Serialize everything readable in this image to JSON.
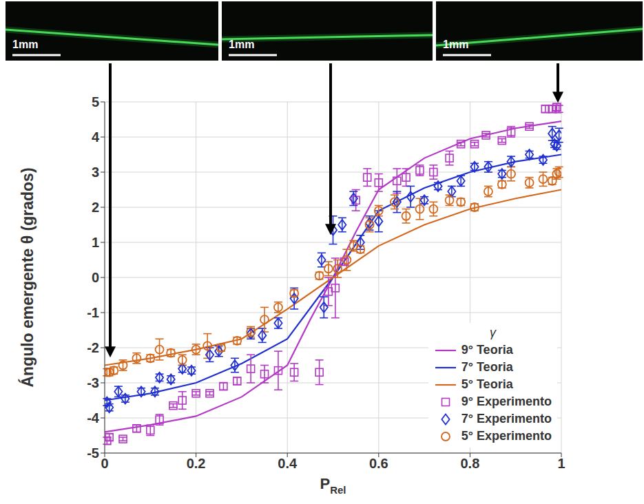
{
  "chart_data": {
    "type": "scatter",
    "ylabel": "Ángulo emergente θ (grados)",
    "xlabel": {
      "text": "P",
      "subscript": "Rel"
    },
    "legend_title": "γ",
    "legend": "lower right",
    "grid": true,
    "xlim": [
      0,
      1
    ],
    "xticks": [
      0,
      0.2,
      0.4,
      0.6,
      0.8,
      1
    ],
    "ylim": [
      -5,
      5
    ],
    "yticks": [
      -5,
      -4,
      -3,
      -2,
      -1,
      0,
      1,
      2,
      3,
      4,
      5
    ],
    "annotations": [
      "1mm",
      "1mm",
      "1mm"
    ],
    "series": [
      {
        "name": "9° Teoria",
        "type": "line",
        "line_style": "solid",
        "color": "#b23ac4",
        "x": [
          0,
          0.1,
          0.2,
          0.3,
          0.4,
          0.45,
          0.5,
          0.55,
          0.6,
          0.7,
          0.8,
          0.9,
          1.0
        ],
        "values": [
          -4.4,
          -4.2,
          -3.95,
          -3.4,
          -2.5,
          -1.2,
          0,
          1.3,
          2.5,
          3.4,
          3.95,
          4.25,
          4.45
        ]
      },
      {
        "name": "7° Teoria",
        "type": "line",
        "line_style": "solid",
        "color": "#1f2fd0",
        "x": [
          0,
          0.1,
          0.2,
          0.3,
          0.4,
          0.5,
          0.6,
          0.7,
          0.8,
          0.9,
          1.0
        ],
        "values": [
          -3.5,
          -3.3,
          -3.0,
          -2.45,
          -1.75,
          0,
          1.9,
          2.55,
          3.0,
          3.3,
          3.5
        ]
      },
      {
        "name": "5° Teoria",
        "type": "line",
        "line_style": "solid",
        "color": "#d2691e",
        "x": [
          0,
          0.1,
          0.2,
          0.3,
          0.4,
          0.5,
          0.6,
          0.7,
          0.8,
          0.9,
          1.0
        ],
        "values": [
          -2.5,
          -2.3,
          -2.05,
          -1.75,
          -0.9,
          0,
          0.9,
          1.5,
          1.95,
          2.25,
          2.5
        ]
      },
      {
        "name": "9° Experimento",
        "type": "scatter",
        "marker": "square",
        "color": "#b23ac4",
        "x": [
          0.005,
          0.01,
          0.04,
          0.07,
          0.1,
          0.12,
          0.15,
          0.17,
          0.2,
          0.23,
          0.26,
          0.29,
          0.32,
          0.35,
          0.38,
          0.415,
          0.47,
          0.49,
          0.505,
          0.525,
          0.55,
          0.575,
          0.6,
          0.64,
          0.66,
          0.69,
          0.72,
          0.755,
          0.78,
          0.81,
          0.835,
          0.87,
          0.89,
          0.93,
          0.965,
          0.98,
          0.99,
          0.995
        ],
        "values": [
          -4.65,
          -4.55,
          -4.6,
          -4.3,
          -4.35,
          -4.05,
          -3.65,
          -3.5,
          -3.3,
          -3.3,
          -3.1,
          -2.95,
          -2.6,
          -2.75,
          -2.65,
          -2.7,
          -2.7,
          -0.4,
          -0.3,
          0.45,
          2.2,
          2.85,
          2.7,
          2.75,
          2.85,
          3.05,
          3.0,
          3.4,
          3.8,
          3.8,
          4.05,
          3.9,
          4.15,
          4.3,
          4.8,
          4.8,
          4.85,
          4.8
        ],
        "errors": [
          0.1,
          0.1,
          0.05,
          0.1,
          0.15,
          0.15,
          0.05,
          0.25,
          0.05,
          0.05,
          0.1,
          0.1,
          0.4,
          0.25,
          0.55,
          0.25,
          0.35,
          0.4,
          0.85,
          0.1,
          0.3,
          0.25,
          0.25,
          0.35,
          0.25,
          0.15,
          0.2,
          0.2,
          0.05,
          0.05,
          0.05,
          0.05,
          0.15,
          0.05,
          0.1,
          0.1,
          0.1,
          0.1
        ]
      },
      {
        "name": "7° Experimento",
        "type": "scatter",
        "marker": "diamond",
        "color": "#1f2fd0",
        "x": [
          0.005,
          0.01,
          0.03,
          0.045,
          0.08,
          0.11,
          0.12,
          0.145,
          0.17,
          0.19,
          0.23,
          0.25,
          0.285,
          0.32,
          0.345,
          0.38,
          0.415,
          0.475,
          0.48,
          0.5,
          0.52,
          0.545,
          0.56,
          0.58,
          0.6,
          0.64,
          0.67,
          0.7,
          0.73,
          0.76,
          0.78,
          0.81,
          0.84,
          0.87,
          0.89,
          0.93,
          0.96,
          0.98,
          0.985,
          0.99,
          0.995
        ],
        "values": [
          -3.55,
          -3.7,
          -3.25,
          -3.45,
          -3.25,
          -3.25,
          -2.85,
          -2.9,
          -2.6,
          -2.65,
          -2.2,
          -2.1,
          -2.5,
          -1.6,
          -1.65,
          -1.3,
          -0.6,
          0.5,
          -0.85,
          1.35,
          1.5,
          2.25,
          1.0,
          1.55,
          1.6,
          2.15,
          2.3,
          2.2,
          2.6,
          2.45,
          2.75,
          3.15,
          3.15,
          2.95,
          3.3,
          3.5,
          3.35,
          4.1,
          3.8,
          3.75,
          4.05
        ],
        "errors": [
          0.1,
          0.1,
          0.15,
          0.1,
          0.1,
          0.1,
          0.1,
          0.1,
          0.1,
          0.1,
          0.2,
          0.15,
          0.2,
          0.15,
          0.2,
          0.15,
          0.3,
          0.2,
          0.3,
          0.4,
          0.2,
          0.2,
          0.2,
          0.2,
          0.3,
          0.3,
          0.3,
          0.1,
          0.1,
          0.15,
          0.15,
          0.1,
          0.15,
          0.1,
          0.15,
          0.1,
          0.1,
          0.2,
          0.1,
          0.1,
          0.2
        ]
      },
      {
        "name": "5° Experimento",
        "type": "scatter",
        "marker": "circle",
        "color": "#d2691e",
        "x": [
          0.005,
          0.01,
          0.02,
          0.04,
          0.07,
          0.1,
          0.12,
          0.145,
          0.17,
          0.2,
          0.225,
          0.255,
          0.29,
          0.32,
          0.35,
          0.38,
          0.415,
          0.47,
          0.49,
          0.51,
          0.53,
          0.545,
          0.56,
          0.58,
          0.6,
          0.635,
          0.66,
          0.69,
          0.72,
          0.755,
          0.78,
          0.81,
          0.84,
          0.87,
          0.89,
          0.93,
          0.96,
          0.98,
          0.99,
          0.995
        ],
        "values": [
          -2.7,
          -2.7,
          -2.65,
          -2.5,
          -2.3,
          -2.3,
          -2.05,
          -2.15,
          -2.35,
          -2.05,
          -1.95,
          -2.0,
          -1.8,
          -1.55,
          -1.2,
          -0.85,
          -0.45,
          0.05,
          0.25,
          0.25,
          0.5,
          0.9,
          0.8,
          1.5,
          1.9,
          2.15,
          1.75,
          1.95,
          1.95,
          2.2,
          2.15,
          2.0,
          2.45,
          2.65,
          2.95,
          2.7,
          2.8,
          2.75,
          2.95,
          3.0
        ],
        "errors": [
          0.1,
          0.1,
          0.1,
          0.15,
          0.15,
          0.1,
          0.3,
          0.1,
          0.15,
          0.15,
          0.35,
          0.1,
          0.1,
          0.15,
          0.35,
          0.15,
          0.1,
          0.1,
          0.2,
          0.25,
          0.3,
          0.15,
          0.1,
          0.2,
          0.15,
          0.2,
          0.2,
          0.3,
          0.2,
          0.15,
          0.1,
          0.1,
          0.15,
          0.1,
          0.2,
          0.15,
          0.2,
          0.1,
          0.15,
          0.15
        ]
      }
    ]
  }
}
